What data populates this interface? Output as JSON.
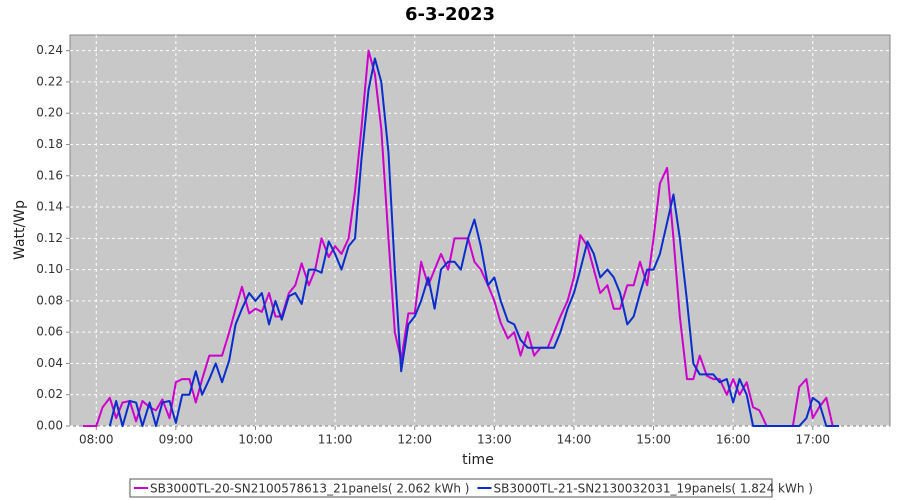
{
  "chart_data": {
    "type": "line",
    "title": "6-3-2023",
    "x_label": "time",
    "y_label": "Watt/Wp",
    "xlim": [
      7.67,
      17.97
    ],
    "ylim": [
      0,
      0.25
    ],
    "xticks": [
      {
        "value": 8,
        "label": "08:00"
      },
      {
        "value": 9,
        "label": "09:00"
      },
      {
        "value": 10,
        "label": "10:00"
      },
      {
        "value": 11,
        "label": "11:00"
      },
      {
        "value": 12,
        "label": "12:00"
      },
      {
        "value": 13,
        "label": "13:00"
      },
      {
        "value": 14,
        "label": "14:00"
      },
      {
        "value": 15,
        "label": "15:00"
      },
      {
        "value": 16,
        "label": "16:00"
      },
      {
        "value": 17,
        "label": "17:00"
      }
    ],
    "yticks": [
      {
        "value": 0,
        "label": "0.00"
      },
      {
        "value": 0.02,
        "label": "0.02"
      },
      {
        "value": 0.04,
        "label": "0.04"
      },
      {
        "value": 0.06,
        "label": "0.06"
      },
      {
        "value": 0.08,
        "label": "0.08"
      },
      {
        "value": 0.1,
        "label": "0.10"
      },
      {
        "value": 0.12,
        "label": "0.12"
      },
      {
        "value": 0.14,
        "label": "0.14"
      },
      {
        "value": 0.16,
        "label": "0.16"
      },
      {
        "value": 0.18,
        "label": "0.18"
      },
      {
        "value": 0.2,
        "label": "0.20"
      },
      {
        "value": 0.22,
        "label": "0.22"
      },
      {
        "value": 0.24,
        "label": "0.24"
      }
    ],
    "grid": true,
    "x": [
      7.83,
      7.92,
      8.0,
      8.08,
      8.17,
      8.25,
      8.33,
      8.42,
      8.5,
      8.58,
      8.67,
      8.75,
      8.83,
      8.92,
      9.0,
      9.08,
      9.17,
      9.25,
      9.33,
      9.42,
      9.5,
      9.58,
      9.67,
      9.75,
      9.83,
      9.92,
      10.0,
      10.08,
      10.17,
      10.25,
      10.33,
      10.42,
      10.5,
      10.58,
      10.67,
      10.75,
      10.83,
      10.92,
      11.0,
      11.08,
      11.17,
      11.25,
      11.33,
      11.42,
      11.5,
      11.58,
      11.67,
      11.75,
      11.83,
      11.92,
      12.0,
      12.08,
      12.17,
      12.25,
      12.33,
      12.42,
      12.5,
      12.58,
      12.67,
      12.75,
      12.83,
      12.92,
      13.0,
      13.08,
      13.17,
      13.25,
      13.33,
      13.42,
      13.5,
      13.58,
      13.67,
      13.75,
      13.83,
      13.92,
      14.0,
      14.08,
      14.17,
      14.25,
      14.33,
      14.42,
      14.5,
      14.58,
      14.67,
      14.75,
      14.83,
      14.92,
      15.0,
      15.08,
      15.17,
      15.25,
      15.33,
      15.42,
      15.5,
      15.58,
      15.67,
      15.75,
      15.83,
      15.92,
      16.0,
      16.08,
      16.17,
      16.25,
      16.33,
      16.42,
      16.5,
      16.58,
      16.67,
      16.75,
      16.83,
      16.92,
      17.0,
      17.08,
      17.17,
      17.25,
      17.33
    ],
    "series": [
      {
        "name": "SB3000TL-20-SN2100578613_21panels( 2.062 kWh )",
        "color": "#cc00cc",
        "values": [
          0,
          0,
          0,
          0.012,
          0.018,
          0.005,
          0.015,
          0.016,
          0.003,
          0.016,
          0.012,
          0.01,
          0.017,
          0.005,
          0.028,
          0.03,
          0.03,
          0.015,
          0.03,
          0.045,
          0.045,
          0.045,
          0.06,
          0.075,
          0.089,
          0.072,
          0.075,
          0.073,
          0.085,
          0.07,
          0.07,
          0.085,
          0.09,
          0.104,
          0.09,
          0.1,
          0.12,
          0.108,
          0.115,
          0.11,
          0.12,
          0.15,
          0.19,
          0.24,
          0.225,
          0.19,
          0.12,
          0.06,
          0.042,
          0.072,
          0.072,
          0.105,
          0.09,
          0.1,
          0.11,
          0.1,
          0.12,
          0.12,
          0.12,
          0.105,
          0.1,
          0.09,
          0.08,
          0.066,
          0.056,
          0.06,
          0.045,
          0.06,
          0.045,
          0.05,
          0.05,
          0.06,
          0.07,
          0.08,
          0.095,
          0.122,
          0.115,
          0.1,
          0.085,
          0.09,
          0.075,
          0.075,
          0.09,
          0.09,
          0.105,
          0.09,
          0.12,
          0.155,
          0.165,
          0.12,
          0.07,
          0.03,
          0.03,
          0.045,
          0.032,
          0.03,
          0.03,
          0.02,
          0.03,
          0.02,
          0.028,
          0.012,
          0.01,
          0,
          0,
          0,
          0,
          0,
          0.025,
          0.03,
          0.005,
          0.012,
          0.018,
          0,
          0
        ]
      },
      {
        "name": "SB3000TL-21-SN2130032031_19panels( 1.824 kWh )",
        "color": "#0a2ecc",
        "values": [
          null,
          null,
          null,
          null,
          0,
          0.016,
          0,
          0.016,
          0.015,
          0,
          0.015,
          0,
          0.015,
          0.016,
          0.002,
          0.02,
          0.02,
          0.035,
          0.02,
          0.03,
          0.04,
          0.028,
          0.042,
          0.065,
          0.075,
          0.085,
          0.08,
          0.085,
          0.065,
          0.08,
          0.068,
          0.083,
          0.085,
          0.078,
          0.1,
          0.1,
          0.098,
          0.118,
          0.11,
          0.1,
          0.115,
          0.12,
          0.17,
          0.215,
          0.235,
          0.22,
          0.175,
          0.1,
          0.035,
          0.065,
          0.07,
          0.08,
          0.095,
          0.075,
          0.1,
          0.105,
          0.105,
          0.1,
          0.12,
          0.132,
          0.115,
          0.09,
          0.095,
          0.08,
          0.067,
          0.065,
          0.055,
          0.05,
          0.05,
          0.05,
          0.05,
          0.05,
          0.06,
          0.075,
          0.085,
          0.1,
          0.118,
          0.11,
          0.095,
          0.1,
          0.095,
          0.085,
          0.065,
          0.07,
          0.085,
          0.1,
          0.1,
          0.11,
          0.13,
          0.148,
          0.12,
          0.08,
          0.04,
          0.033,
          0.033,
          0.033,
          0.028,
          0.03,
          0.015,
          0.03,
          0.02,
          0,
          0,
          0,
          0,
          0,
          0,
          0,
          0,
          0.005,
          0.018,
          0.015,
          0,
          0,
          0
        ]
      }
    ]
  }
}
